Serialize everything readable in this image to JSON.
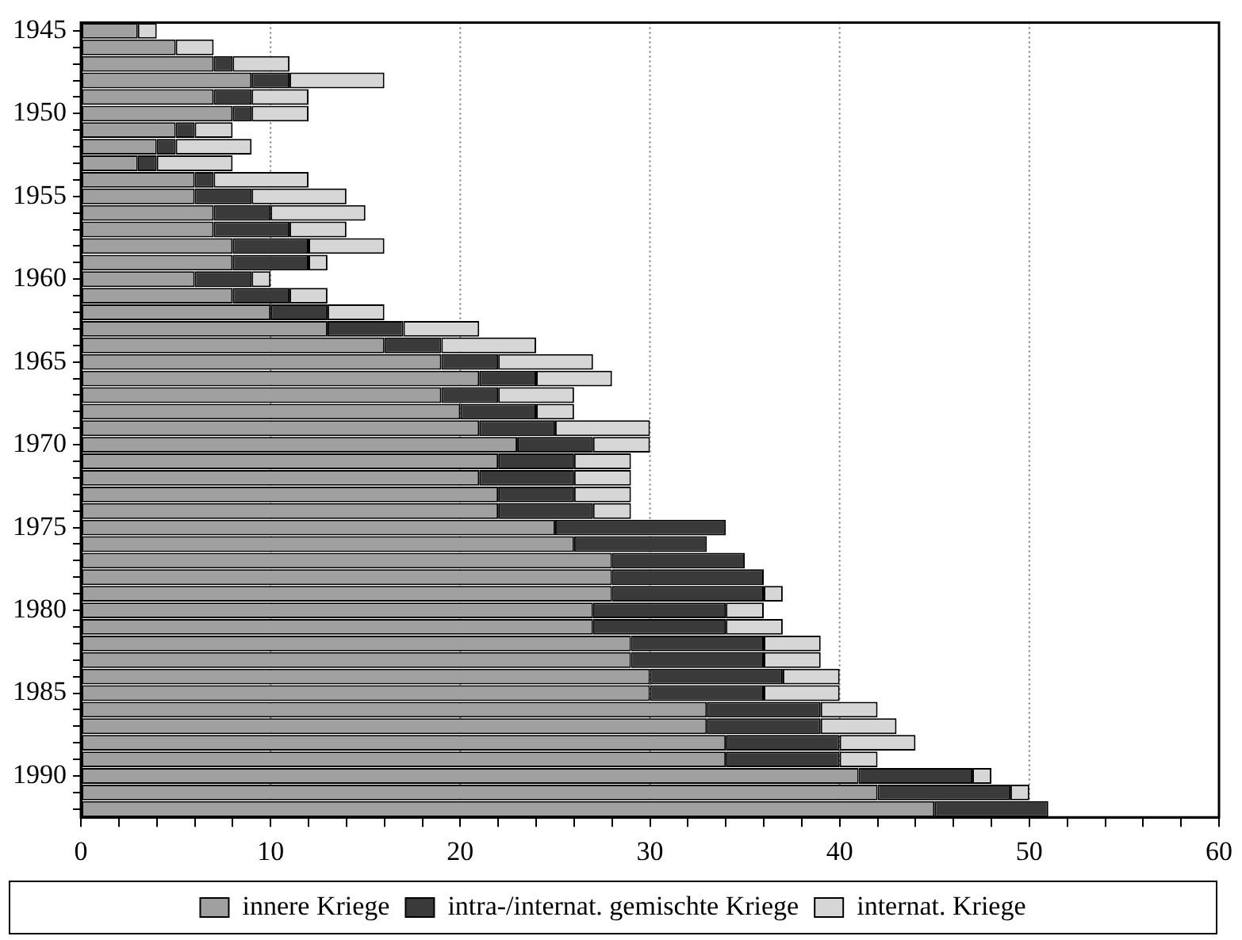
{
  "chart_data": {
    "type": "bar",
    "orientation": "horizontal",
    "stacked": true,
    "categories": [
      "1945",
      null,
      null,
      null,
      null,
      "1950",
      null,
      null,
      null,
      null,
      "1955",
      null,
      null,
      null,
      null,
      "1960",
      null,
      null,
      null,
      null,
      "1965",
      null,
      null,
      null,
      null,
      "1970",
      null,
      null,
      null,
      null,
      "1975",
      null,
      null,
      null,
      null,
      "1980",
      null,
      null,
      null,
      null,
      "1985",
      null,
      null,
      null,
      null,
      "1990",
      null,
      null
    ],
    "series": [
      {
        "name": "innere Kriege",
        "color": "#a0a0a0",
        "values": [
          3,
          5,
          7,
          9,
          7,
          8,
          5,
          4,
          3,
          6,
          6,
          7,
          7,
          8,
          8,
          6,
          8,
          10,
          13,
          16,
          19,
          21,
          19,
          20,
          21,
          23,
          22,
          21,
          22,
          22,
          25,
          26,
          28,
          28,
          28,
          27,
          27,
          29,
          29,
          30,
          30,
          33,
          33,
          34,
          34,
          41,
          42,
          45
        ]
      },
      {
        "name": "intra-/internat. gemischte Kriege",
        "color": "#3a3a3a",
        "values": [
          0,
          0,
          1,
          2,
          2,
          1,
          1,
          1,
          1,
          1,
          3,
          3,
          4,
          4,
          4,
          3,
          3,
          3,
          4,
          3,
          3,
          3,
          3,
          4,
          4,
          4,
          4,
          5,
          4,
          5,
          9,
          7,
          7,
          8,
          8,
          7,
          7,
          7,
          7,
          7,
          6,
          6,
          6,
          6,
          6,
          6,
          7,
          6
        ]
      },
      {
        "name": "internat. Kriege",
        "color": "#d6d6d6",
        "values": [
          1,
          2,
          3,
          5,
          3,
          3,
          2,
          4,
          4,
          5,
          5,
          5,
          3,
          4,
          1,
          1,
          2,
          3,
          4,
          5,
          5,
          4,
          4,
          2,
          5,
          3,
          3,
          3,
          3,
          2,
          0,
          0,
          0,
          0,
          1,
          2,
          3,
          3,
          3,
          3,
          4,
          3,
          4,
          4,
          2,
          1,
          1,
          0
        ]
      }
    ],
    "xlim": [
      0,
      60
    ],
    "xticks": [
      0,
      {
        "value": 2,
        "label": null
      },
      {
        "value": 4,
        "label": null
      },
      {
        "value": 6,
        "label": null
      },
      {
        "value": 8,
        "label": null
      },
      10,
      {
        "value": 12,
        "label": null
      },
      {
        "value": 14,
        "label": null
      },
      {
        "value": 16,
        "label": null
      },
      {
        "value": 18,
        "label": null
      },
      20,
      {
        "value": 22,
        "label": null
      },
      {
        "value": 24,
        "label": null
      },
      {
        "value": 26,
        "label": null
      },
      {
        "value": 28,
        "label": null
      },
      30,
      {
        "value": 32,
        "label": null
      },
      {
        "value": 34,
        "label": null
      },
      {
        "value": 36,
        "label": null
      },
      {
        "value": 38,
        "label": null
      },
      40,
      {
        "value": 42,
        "label": null
      },
      {
        "value": 44,
        "label": null
      },
      {
        "value": 46,
        "label": null
      },
      {
        "value": 48,
        "label": null
      },
      50,
      {
        "value": 52,
        "label": null
      },
      {
        "value": 54,
        "label": null
      },
      {
        "value": 56,
        "label": null
      },
      {
        "value": 58,
        "label": null
      },
      60
    ],
    "grid": "x",
    "legend": "bottom"
  }
}
